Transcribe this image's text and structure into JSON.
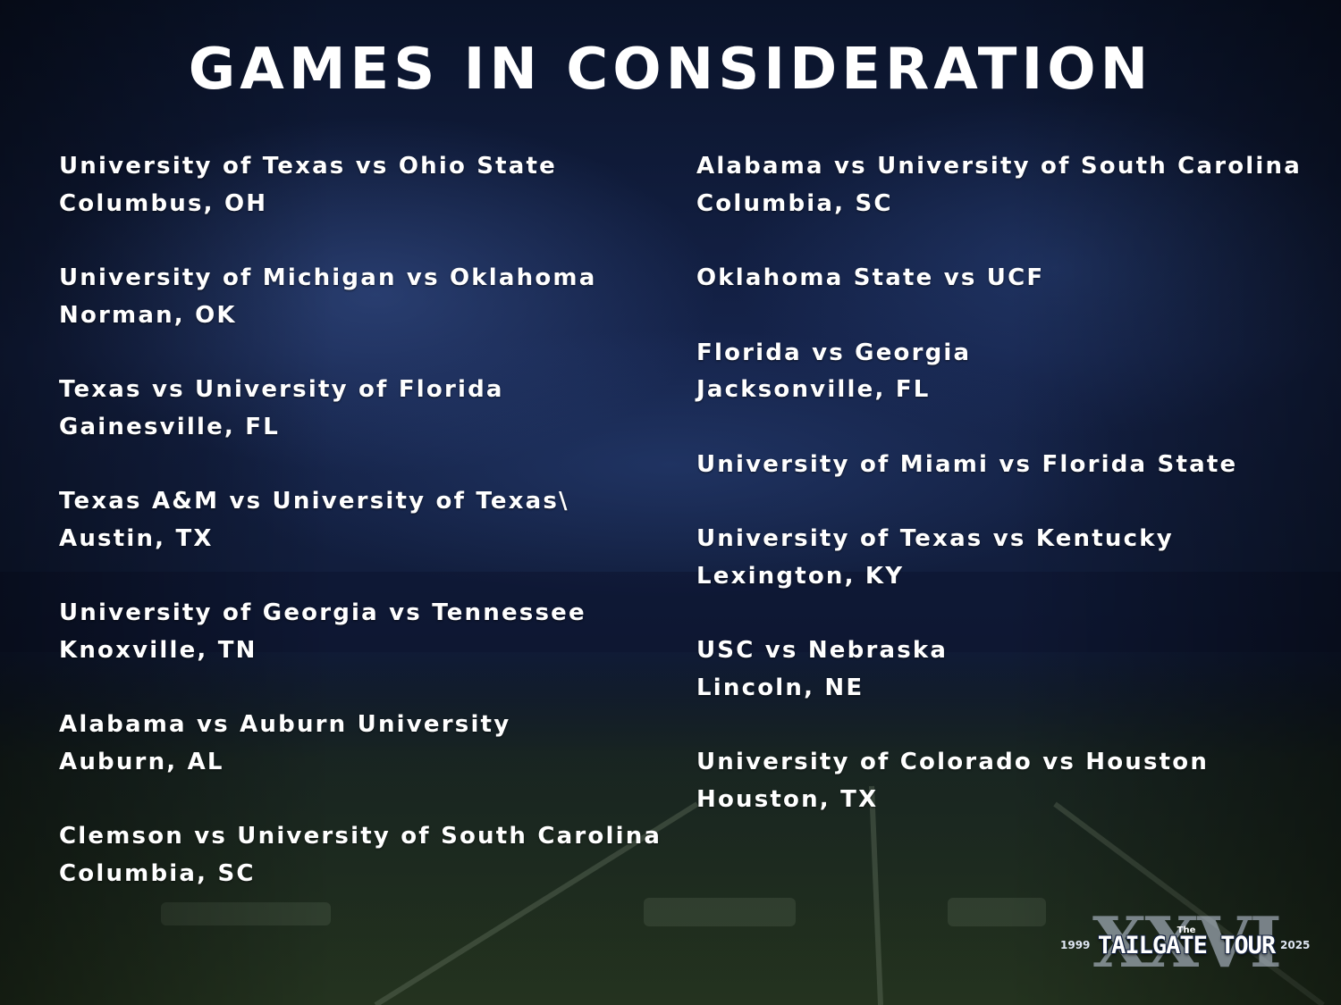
{
  "title": "GAMES IN CONSIDERATION",
  "left_column": [
    {
      "matchup": "University of Texas vs Ohio State",
      "location": "Columbus, OH"
    },
    {
      "matchup": "University of Michigan vs Oklahoma",
      "location": "Norman, OK"
    },
    {
      "matchup": "Texas vs University of Florida",
      "location": "Gainesville, FL"
    },
    {
      "matchup": "Texas A&M vs University of Texas\\",
      "location": "Austin, TX"
    },
    {
      "matchup": "University of Georgia vs Tennessee",
      "location": "Knoxville, TN"
    },
    {
      "matchup": "Alabama vs Auburn University",
      "location": "Auburn, AL"
    },
    {
      "matchup": "Clemson vs University of South Carolina",
      "location": "Columbia, SC"
    }
  ],
  "right_column": [
    {
      "matchup": "Alabama vs University of South Carolina",
      "location": "Columbia, SC"
    },
    {
      "matchup": "Oklahoma State vs UCF"
    },
    {
      "matchup": "Florida vs Georgia",
      "location": "Jacksonville, FL"
    },
    {
      "matchup": "University of Miami vs Florida State"
    },
    {
      "matchup": "University of Texas vs Kentucky",
      "location": "Lexington, KY"
    },
    {
      "matchup": "USC vs Nebraska",
      "location": "Lincoln, NE"
    },
    {
      "matchup": "University of Colorado vs Houston",
      "location": "Houston, TX"
    }
  ],
  "logo": {
    "numeral": "XXVI",
    "the": "The",
    "brand": "TAILGATE TOUR",
    "year_start": "1999",
    "year_end": "2025"
  },
  "colors": {
    "background_dark": "#0b1430",
    "background_blue": "#1e3368",
    "turf": "#24331f",
    "text": "#ffffff"
  }
}
